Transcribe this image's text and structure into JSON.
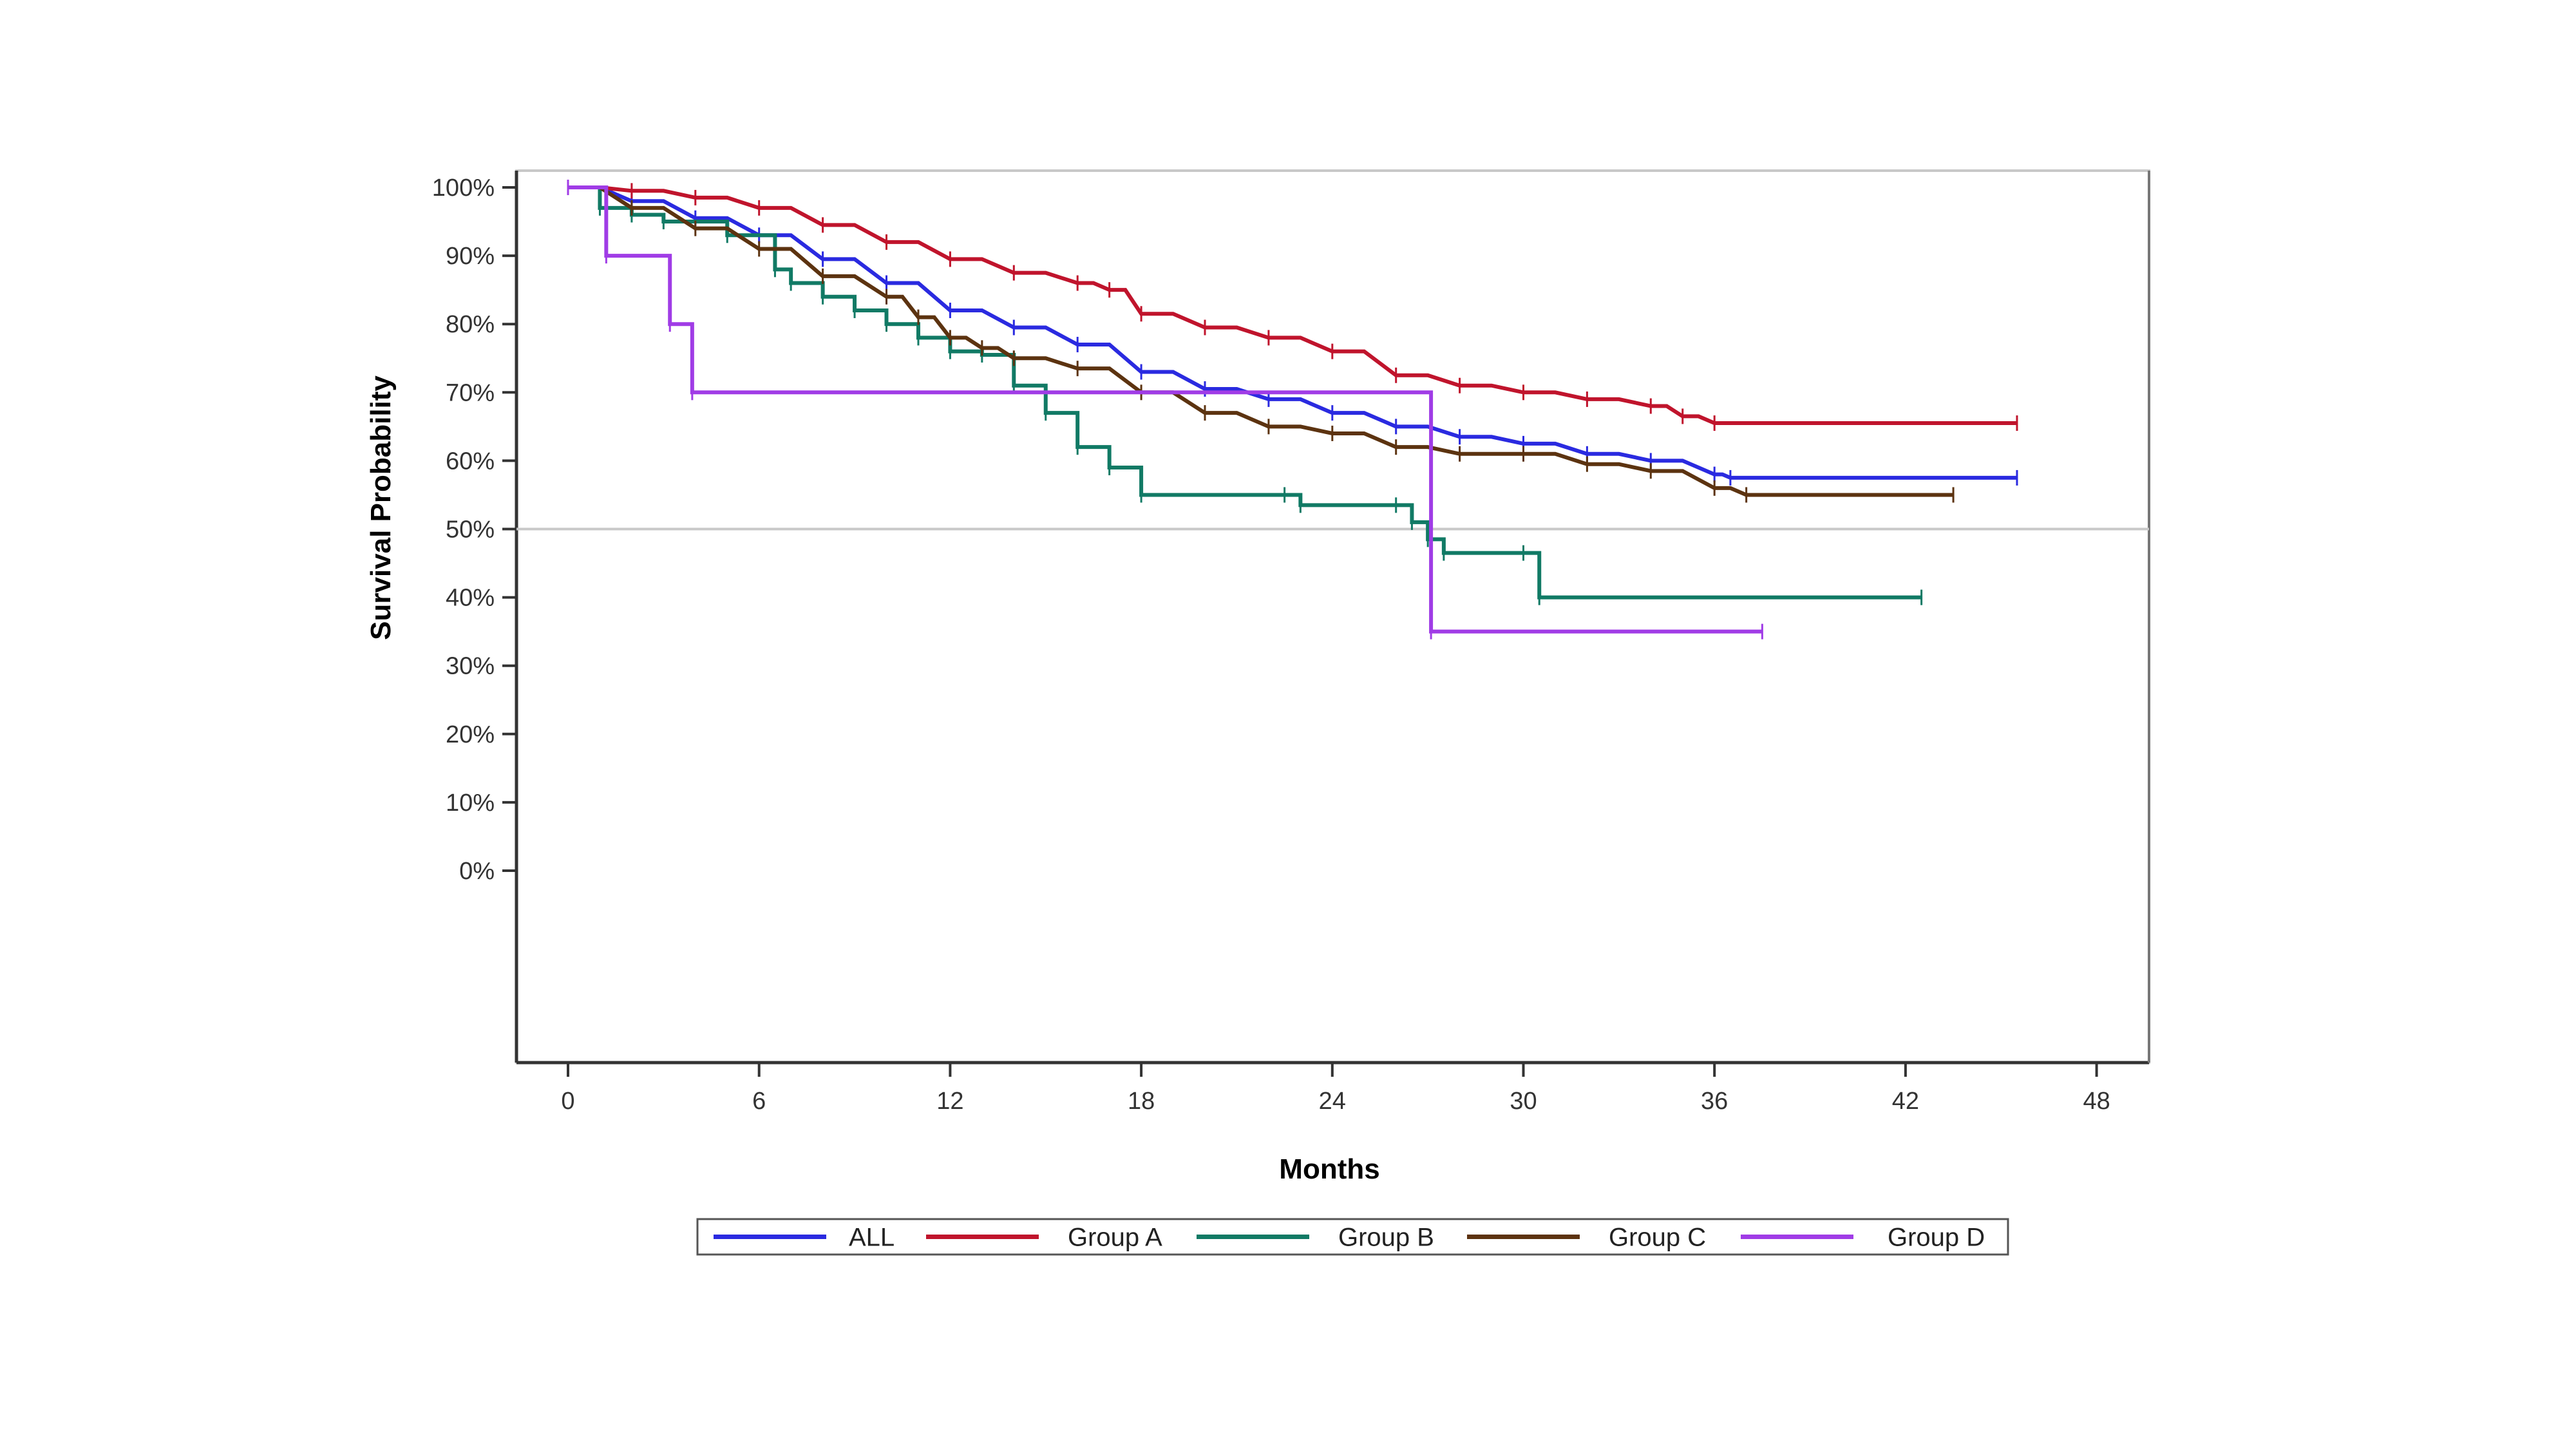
{
  "chart_data": {
    "type": "line",
    "subtype": "kaplan-meier-step",
    "title": "",
    "xlabel": "Months",
    "ylabel": "Survival Probability",
    "xlim": [
      -1.2,
      49
    ],
    "ylim": [
      -28,
      102.5
    ],
    "x_ticks": [
      0,
      6,
      12,
      18,
      24,
      30,
      36,
      42,
      48
    ],
    "x_tick_labels": [
      "0",
      "6",
      "12",
      "18",
      "24",
      "30",
      "36",
      "42",
      "48"
    ],
    "y_ticks": [
      0,
      10,
      20,
      30,
      40,
      50,
      60,
      70,
      80,
      90,
      100
    ],
    "y_tick_labels": [
      "0%",
      "10%",
      "20%",
      "30%",
      "40%",
      "50%",
      "60%",
      "70%",
      "80%",
      "90%",
      "100%"
    ],
    "reference_line": {
      "y": 50,
      "label": ""
    },
    "grid": false,
    "legend_position": "bottom",
    "censor_marks": true,
    "series": [
      {
        "name": "ALL",
        "color": "#2a2ae0",
        "x": [
          0,
          2,
          4,
          6,
          8,
          10,
          12,
          14,
          16,
          18,
          20,
          22,
          24,
          26,
          28,
          30,
          32,
          34,
          36,
          36.5,
          45.5
        ],
        "y": [
          100,
          98,
          95.5,
          93,
          89.5,
          86,
          82,
          79.5,
          77,
          73,
          70.5,
          69,
          67,
          65,
          63.5,
          62.5,
          61,
          60,
          58,
          57.5,
          57.5
        ]
      },
      {
        "name": "Group A",
        "color": "#c0142c",
        "x": [
          0,
          2,
          4,
          6,
          8,
          10,
          12,
          14,
          16,
          17,
          18,
          20,
          22,
          24,
          26,
          28,
          30,
          32,
          34,
          35,
          36,
          45.5
        ],
        "y": [
          100,
          99.5,
          98.5,
          97,
          94.5,
          92,
          89.5,
          87.5,
          86,
          85,
          81.5,
          79.5,
          78,
          76,
          72.5,
          71,
          70,
          69,
          68,
          66.5,
          65.5,
          65.5
        ]
      },
      {
        "name": "Group B",
        "color": "#117a65",
        "x": [
          0,
          1,
          2,
          3,
          5,
          6.5,
          7,
          8,
          9,
          10,
          11,
          12,
          13,
          14,
          15,
          16,
          17,
          18,
          22.5,
          23,
          26,
          26.5,
          27,
          27.5,
          30,
          30.5,
          42.5
        ],
        "y": [
          100,
          97,
          96,
          95,
          93,
          88,
          86,
          84,
          82,
          80,
          78,
          76,
          75.5,
          71,
          67,
          62,
          59,
          55,
          55,
          53.5,
          53.5,
          51,
          48.5,
          46.5,
          46.5,
          40,
          40
        ]
      },
      {
        "name": "Group C",
        "color": "#5c3310",
        "x": [
          0,
          2,
          4,
          6,
          8,
          10,
          11,
          12,
          13,
          14,
          16,
          18,
          20,
          22,
          24,
          26,
          28,
          30,
          32,
          34,
          36,
          37,
          43.5
        ],
        "y": [
          100,
          97,
          94,
          91,
          87,
          84,
          81,
          78,
          76.5,
          75,
          73.5,
          70,
          67,
          65,
          64,
          62,
          61,
          61,
          59.5,
          58.5,
          56,
          55,
          55
        ]
      },
      {
        "name": "Group D",
        "color": "#a03ce6",
        "x": [
          0,
          1.2,
          3.2,
          3.9,
          27.1,
          37.5
        ],
        "y": [
          100,
          90,
          80,
          70,
          35,
          35
        ]
      }
    ]
  }
}
